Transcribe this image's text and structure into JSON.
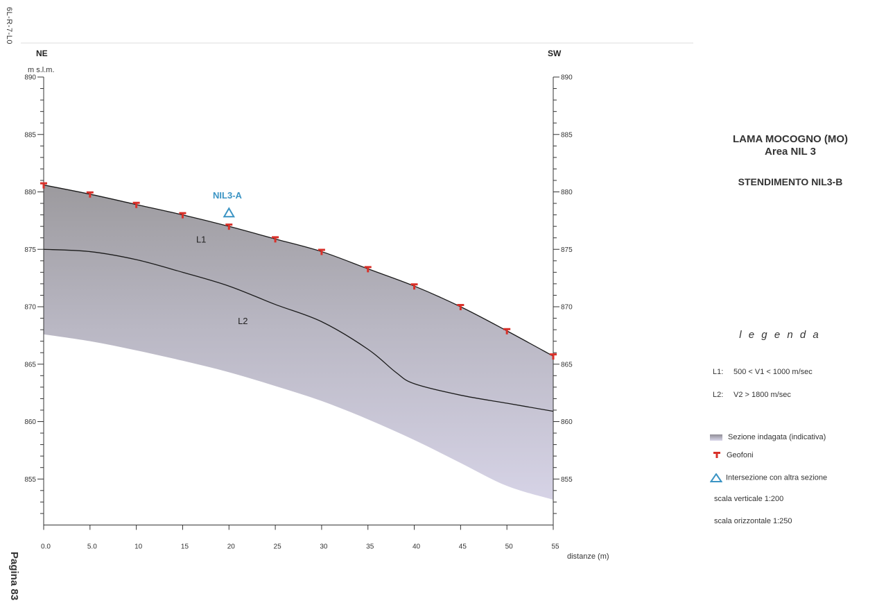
{
  "document": {
    "code": "6L-R-7-L0",
    "page": "Pagina 83"
  },
  "title": {
    "line1": "LAMA MOCOGNO (MO)",
    "line2": "Area NIL 3",
    "line3": "STENDIMENTO NIL3-B"
  },
  "section": {
    "left_label": "NE",
    "right_label": "SW",
    "unit_label": "m s.l.m.",
    "x_axis_label": "distanze (m)",
    "x_ticks": [
      "0.0",
      "5.0",
      "10",
      "15",
      "20",
      "25",
      "30",
      "35",
      "40",
      "45",
      "50",
      "55"
    ],
    "y_ticks_left": [
      "890",
      "885",
      "880",
      "875",
      "870",
      "865",
      "860",
      "855"
    ],
    "y_ticks_right": [
      "890",
      "885",
      "880",
      "875",
      "870",
      "865",
      "860",
      "855"
    ],
    "layer_labels": [
      {
        "label": "L1",
        "x": 17,
        "y": 875.6
      },
      {
        "label": "L2",
        "x": 21.5,
        "y": 868.5
      }
    ],
    "intersection": {
      "label": "NIL3-A",
      "x": 20,
      "y": 878.2
    },
    "colors": {
      "section_fill": "#c9c7d8",
      "geophone": "#d8312a",
      "intersection": "#3b94c4",
      "line": "#1a1a1a"
    }
  },
  "chart_data": {
    "type": "line",
    "xlabel": "distanze (m)",
    "ylabel": "m s.l.m.",
    "xlim": [
      0,
      55
    ],
    "ylim": [
      851,
      890
    ],
    "series": [
      {
        "name": "topography",
        "x": [
          0,
          5,
          10,
          15,
          20,
          25,
          30,
          35,
          40,
          45,
          50,
          55
        ],
        "y": [
          880.6,
          879.8,
          878.9,
          878.0,
          877.0,
          875.9,
          874.8,
          873.3,
          871.8,
          870.0,
          867.9,
          865.7
        ]
      },
      {
        "name": "L1/L2 interface",
        "x": [
          0,
          5,
          10,
          15,
          20,
          25,
          30,
          35,
          38,
          40,
          45,
          50,
          55
        ],
        "y": [
          875.0,
          874.8,
          874.1,
          873.0,
          871.8,
          870.2,
          868.7,
          866.3,
          864.3,
          863.3,
          862.3,
          861.6,
          860.9
        ]
      },
      {
        "name": "section bottom",
        "x": [
          0,
          5,
          10,
          15,
          20,
          25,
          30,
          35,
          40,
          45,
          50,
          55
        ],
        "y": [
          867.6,
          867.0,
          866.2,
          865.3,
          864.3,
          863.1,
          861.8,
          860.2,
          858.4,
          856.4,
          854.4,
          853.2
        ]
      }
    ],
    "geophones": {
      "x": [
        0,
        5,
        10,
        15,
        20,
        25,
        30,
        35,
        40,
        45,
        50,
        55
      ],
      "y": [
        880.6,
        879.8,
        878.9,
        878.0,
        877.0,
        875.9,
        874.8,
        873.3,
        871.8,
        870.0,
        867.9,
        865.7
      ]
    }
  },
  "legend": {
    "title": "l e g e n d a",
    "l1_key": "L1:",
    "l1_text": "500 < V1 < 1000 m/sec",
    "l2_key": "L2:",
    "l2_text": "V2 > 1800 m/sec",
    "section_text": "Sezione  indagata (indicativa)",
    "geofoni_text": "Geofoni",
    "intersection_text": "Intersezione con altra sezione",
    "scale_v": "scala verticale 1:200",
    "scale_h": "scala orizzontale 1:250"
  }
}
